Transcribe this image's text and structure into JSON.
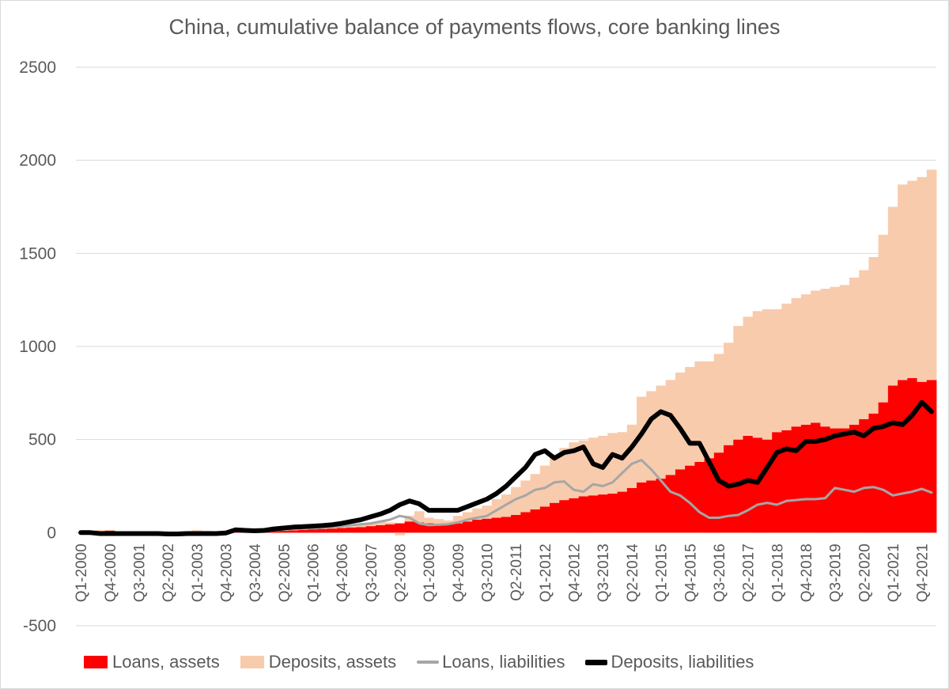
{
  "chart_data": {
    "type": "bar",
    "title": "China, cumulative balance of payments flows, core banking lines",
    "xlabel": "",
    "ylabel": "",
    "ylim": [
      -500,
      2500
    ],
    "yticks": [
      -500,
      0,
      500,
      1000,
      1500,
      2000,
      2500
    ],
    "gridlines": true,
    "legend_position": "bottom",
    "categories": [
      "Q1-2000",
      "Q2-2000",
      "Q3-2000",
      "Q4-2000",
      "Q1-2001",
      "Q2-2001",
      "Q3-2001",
      "Q4-2001",
      "Q1-2002",
      "Q2-2002",
      "Q3-2002",
      "Q4-2002",
      "Q1-2003",
      "Q2-2003",
      "Q3-2003",
      "Q4-2003",
      "Q1-2004",
      "Q2-2004",
      "Q3-2004",
      "Q4-2004",
      "Q1-2005",
      "Q2-2005",
      "Q3-2005",
      "Q4-2005",
      "Q1-2006",
      "Q2-2006",
      "Q3-2006",
      "Q4-2006",
      "Q1-2007",
      "Q2-2007",
      "Q3-2007",
      "Q4-2007",
      "Q1-2008",
      "Q2-2008",
      "Q3-2008",
      "Q4-2008",
      "Q1-2009",
      "Q2-2009",
      "Q3-2009",
      "Q4-2009",
      "Q1-2010",
      "Q2-2010",
      "Q3-2010",
      "Q4-2010",
      "Q1-2011",
      "Q2-2011",
      "Q3-2011",
      "Q4-2011",
      "Q1-2012",
      "Q2-2012",
      "Q3-2012",
      "Q4-2012",
      "Q1-2013",
      "Q2-2013",
      "Q3-2013",
      "Q4-2013",
      "Q1-2014",
      "Q2-2014",
      "Q3-2014",
      "Q4-2014",
      "Q1-2015",
      "Q2-2015",
      "Q3-2015",
      "Q4-2015",
      "Q1-2016",
      "Q2-2016",
      "Q3-2016",
      "Q4-2016",
      "Q1-2017",
      "Q2-2017",
      "Q3-2017",
      "Q4-2017",
      "Q1-2018",
      "Q2-2018",
      "Q3-2018",
      "Q4-2018",
      "Q1-2019",
      "Q2-2019",
      "Q3-2019",
      "Q4-2019",
      "Q1-2020",
      "Q2-2020",
      "Q3-2020",
      "Q4-2020",
      "Q1-2021",
      "Q2-2021",
      "Q3-2021",
      "Q4-2021",
      "Q1-2022"
    ],
    "tick_labels": [
      "Q1-2000",
      "Q4-2000",
      "Q3-2001",
      "Q2-2002",
      "Q1-2003",
      "Q4-2003",
      "Q3-2004",
      "Q2-2005",
      "Q1-2006",
      "Q4-2006",
      "Q3-2007",
      "Q2-2008",
      "Q1-2009",
      "Q4-2009",
      "Q3-2010",
      "Q2-2011",
      "Q1-2012",
      "Q4-2012",
      "Q3-2013",
      "Q2-2014",
      "Q1-2015",
      "Q4-2015",
      "Q3-2016",
      "Q2-2017",
      "Q1-2018",
      "Q4-2018",
      "Q3-2019",
      "Q2-2020",
      "Q1-2021",
      "Q4-2021"
    ],
    "series": [
      {
        "name": "Loans, assets",
        "kind": "stacked-bar",
        "color": "#ff0000",
        "values": [
          0,
          5,
          8,
          10,
          5,
          3,
          2,
          0,
          -3,
          -5,
          -3,
          5,
          8,
          5,
          2,
          0,
          5,
          8,
          3,
          5,
          8,
          10,
          12,
          15,
          18,
          20,
          22,
          25,
          28,
          30,
          35,
          40,
          45,
          50,
          60,
          55,
          50,
          48,
          45,
          50,
          60,
          70,
          75,
          80,
          85,
          95,
          110,
          125,
          140,
          160,
          175,
          185,
          195,
          200,
          205,
          210,
          220,
          240,
          270,
          280,
          290,
          310,
          340,
          360,
          380,
          400,
          430,
          470,
          500,
          520,
          510,
          500,
          540,
          550,
          570,
          580,
          590,
          570,
          560,
          560,
          580,
          610,
          640,
          700,
          790,
          820,
          830,
          810,
          820
        ]
      },
      {
        "name": "Deposits, assets",
        "kind": "stacked-bar",
        "color": "#f8cbad",
        "values": [
          0,
          5,
          5,
          5,
          0,
          -2,
          -3,
          0,
          2,
          0,
          -2,
          3,
          5,
          5,
          3,
          -2,
          0,
          2,
          5,
          2,
          2,
          5,
          5,
          5,
          5,
          5,
          5,
          8,
          10,
          12,
          15,
          20,
          10,
          -15,
          30,
          60,
          30,
          25,
          20,
          40,
          50,
          60,
          70,
          100,
          120,
          150,
          170,
          190,
          220,
          260,
          280,
          300,
          300,
          310,
          315,
          325,
          320,
          340,
          460,
          480,
          500,
          510,
          520,
          530,
          540,
          520,
          530,
          550,
          610,
          640,
          680,
          700,
          660,
          680,
          690,
          700,
          710,
          740,
          760,
          770,
          790,
          800,
          840,
          900,
          960,
          1050,
          1060,
          1100,
          1130
        ]
      },
      {
        "name": "Loans, liabilities",
        "kind": "line",
        "color": "#a6a6a6",
        "values": [
          0,
          0,
          0,
          -2,
          -3,
          -3,
          -2,
          -3,
          -5,
          -5,
          -3,
          -3,
          -2,
          -3,
          0,
          5,
          15,
          12,
          10,
          12,
          15,
          18,
          20,
          22,
          25,
          28,
          30,
          35,
          40,
          45,
          50,
          60,
          70,
          90,
          80,
          50,
          40,
          42,
          45,
          55,
          70,
          80,
          90,
          120,
          150,
          180,
          200,
          230,
          240,
          270,
          275,
          230,
          220,
          260,
          250,
          270,
          320,
          370,
          390,
          340,
          280,
          220,
          200,
          160,
          110,
          80,
          80,
          90,
          95,
          120,
          150,
          160,
          150,
          170,
          175,
          180,
          180,
          185,
          240,
          230,
          220,
          240,
          245,
          230,
          200,
          210,
          220,
          235,
          215
        ]
      },
      {
        "name": "Deposits, liabilities",
        "kind": "line",
        "color": "#000000",
        "values": [
          0,
          0,
          -5,
          -5,
          -5,
          -5,
          -5,
          -5,
          -5,
          -7,
          -7,
          -5,
          -5,
          -5,
          -5,
          -2,
          15,
          12,
          10,
          12,
          20,
          25,
          30,
          32,
          35,
          38,
          42,
          50,
          60,
          70,
          85,
          100,
          120,
          150,
          170,
          155,
          120,
          120,
          120,
          120,
          140,
          160,
          180,
          210,
          250,
          300,
          350,
          420,
          440,
          400,
          430,
          440,
          460,
          370,
          350,
          420,
          400,
          460,
          530,
          610,
          650,
          630,
          560,
          480,
          480,
          380,
          280,
          250,
          260,
          280,
          270,
          350,
          430,
          450,
          440,
          490,
          490,
          500,
          520,
          530,
          540,
          520,
          560,
          570,
          590,
          580,
          630,
          700,
          650
        ]
      }
    ]
  },
  "legend": {
    "items": [
      {
        "label": "Loans, assets",
        "color": "#ff0000"
      },
      {
        "label": "Deposits, assets",
        "color": "#f8cbad"
      },
      {
        "label": "Loans, liabilities",
        "color": "#a6a6a6"
      },
      {
        "label": "Deposits, liabilities",
        "color": "#000000"
      }
    ]
  }
}
